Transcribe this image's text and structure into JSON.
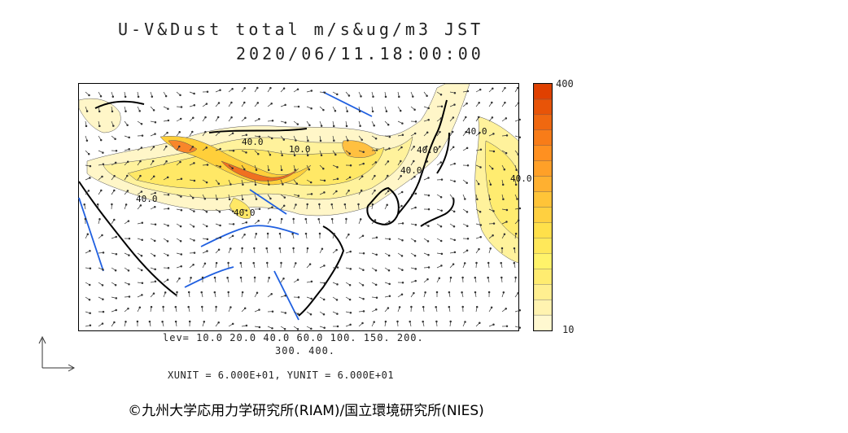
{
  "title": {
    "line1": "U-V&Dust total m/s&ug/m3 JST",
    "line2": "2020/06/11.18:00:00"
  },
  "colorbar": {
    "max_label": "400",
    "min_label": "10",
    "colors": [
      "#fff8d0",
      "#fff3b0",
      "#ffef90",
      "#ffec70",
      "#fff36a",
      "#ffe85a",
      "#ffe04a",
      "#ffd040",
      "#ffc438",
      "#ffb030",
      "#ffa028",
      "#ff9020",
      "#f87c18",
      "#f06810",
      "#e85408",
      "#e04000"
    ]
  },
  "levels": {
    "line1": "lev= 10.0 20.0 40.0 60.0 100. 150. 200.",
    "line2": "300. 400."
  },
  "units_text": "XUNIT = 6.000E+01, YUNIT = 6.000E+01",
  "contour_labels": [
    "40.0",
    "40.0",
    "40.0",
    "40.0",
    "10.0",
    "40.0",
    "40.0",
    "40.0"
  ],
  "credit": "©九州大学応用力学研究所(RIAM)/国立環境研究所(NIES)"
}
